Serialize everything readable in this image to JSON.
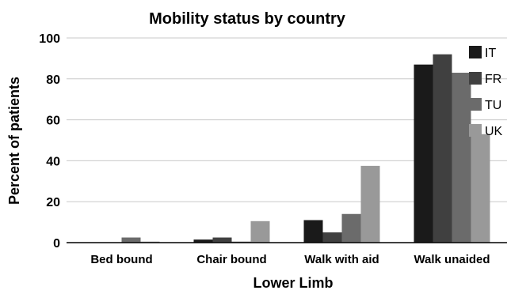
{
  "chart_data": {
    "type": "bar",
    "title": "Mobility status by country",
    "xlabel": "Lower Limb",
    "ylabel": "Percent of patients",
    "ylim": [
      0,
      100
    ],
    "yticks": [
      0,
      20,
      40,
      60,
      80,
      100
    ],
    "grid": true,
    "legend_position": "top-right",
    "categories": [
      "Bed bound",
      "Chair bound",
      "Walk with aid",
      "Walk unaided"
    ],
    "series": [
      {
        "name": "IT",
        "color": "#1a1a1a",
        "values": [
          0,
          1.5,
          11,
          87
        ]
      },
      {
        "name": "FR",
        "color": "#404040",
        "values": [
          0,
          2.5,
          5,
          92
        ]
      },
      {
        "name": "TU",
        "color": "#6b6b6b",
        "values": [
          2.5,
          0.5,
          14,
          83
        ]
      },
      {
        "name": "UK",
        "color": "#999999",
        "values": [
          0.5,
          10.5,
          37.5,
          53
        ]
      }
    ]
  }
}
